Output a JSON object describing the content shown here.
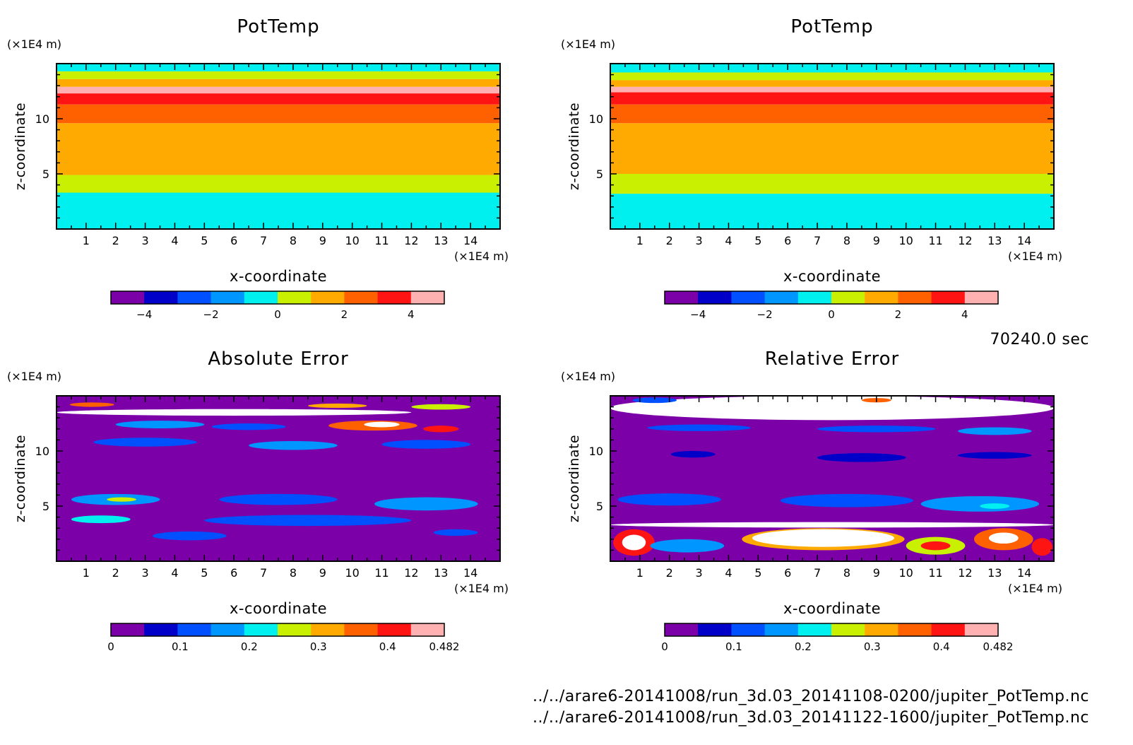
{
  "timestamp": "70240.0 sec",
  "files": [
    "../../arare6-20141008/run_3d.03_20141108-0200/jupiter_PotTemp.nc",
    "../../arare6-20141008/run_3d.03_20141122-1600/jupiter_PotTemp.nc"
  ],
  "chart_data": [
    {
      "type": "heatmap",
      "title": "PotTemp",
      "xlabel": "x-coordinate",
      "ylabel": "z-coordinate",
      "x_unit": "(×1E4 m)",
      "y_unit": "(×1E4 m)",
      "xlim": [
        0,
        15
      ],
      "ylim": [
        0,
        15
      ],
      "x_ticks": [
        "1",
        "2",
        "3",
        "4",
        "5",
        "6",
        "7",
        "8",
        "9",
        "10",
        "11",
        "12",
        "13",
        "14"
      ],
      "y_ticks": [
        "5",
        "10"
      ],
      "colorbar": {
        "levels": [
          -5,
          -4,
          -3,
          -2,
          -1,
          0,
          1,
          2,
          3,
          4,
          5
        ],
        "tick_labels": [
          "−4",
          "−2",
          "0",
          "2",
          "4"
        ],
        "colors": [
          "#7c00a8",
          "#0000c8",
          "#0050ff",
          "#0096ff",
          "#00f0f0",
          "#c8f000",
          "#ffaa00",
          "#ff6000",
          "#ff1414",
          "#ffb0b0"
        ]
      },
      "layers": [
        {
          "z_from": 0,
          "z_to": 3.3,
          "color": "#00f0f0"
        },
        {
          "z_from": 3.3,
          "z_to": 4.9,
          "color": "#c8f000"
        },
        {
          "z_from": 4.9,
          "z_to": 9.6,
          "color": "#ffaa00"
        },
        {
          "z_from": 9.6,
          "z_to": 11.3,
          "color": "#ff6000"
        },
        {
          "z_from": 11.3,
          "z_to": 12.3,
          "color": "#ff1414"
        },
        {
          "z_from": 12.3,
          "z_to": 12.9,
          "color": "#ffb0b0"
        },
        {
          "z_from": 12.9,
          "z_to": 13.6,
          "color": "#ffaa00"
        },
        {
          "z_from": 13.6,
          "z_to": 14.3,
          "color": "#c8f000"
        },
        {
          "z_from": 14.3,
          "z_to": 15,
          "color": "#00f0f0"
        }
      ]
    },
    {
      "type": "heatmap",
      "title": "PotTemp",
      "xlabel": "x-coordinate",
      "ylabel": "z-coordinate",
      "x_unit": "(×1E4 m)",
      "y_unit": "(×1E4 m)",
      "xlim": [
        0,
        15
      ],
      "ylim": [
        0,
        15
      ],
      "x_ticks": [
        "1",
        "2",
        "3",
        "4",
        "5",
        "6",
        "7",
        "8",
        "9",
        "10",
        "11",
        "12",
        "13",
        "14"
      ],
      "y_ticks": [
        "5",
        "10"
      ],
      "colorbar": {
        "levels": [
          -5,
          -4,
          -3,
          -2,
          -1,
          0,
          1,
          2,
          3,
          4,
          5
        ],
        "tick_labels": [
          "−4",
          "−2",
          "0",
          "2",
          "4"
        ],
        "colors": [
          "#7c00a8",
          "#0000c8",
          "#0050ff",
          "#0096ff",
          "#00f0f0",
          "#c8f000",
          "#ffaa00",
          "#ff6000",
          "#ff1414",
          "#ffb0b0"
        ]
      },
      "layers": [
        {
          "z_from": 0,
          "z_to": 3.2,
          "color": "#00f0f0"
        },
        {
          "z_from": 3.2,
          "z_to": 5.0,
          "color": "#c8f000"
        },
        {
          "z_from": 5.0,
          "z_to": 9.6,
          "color": "#ffaa00"
        },
        {
          "z_from": 9.6,
          "z_to": 11.3,
          "color": "#ff6000"
        },
        {
          "z_from": 11.3,
          "z_to": 12.4,
          "color": "#ff1414"
        },
        {
          "z_from": 12.4,
          "z_to": 12.9,
          "color": "#ffb0b0"
        },
        {
          "z_from": 12.9,
          "z_to": 13.5,
          "color": "#ffaa00"
        },
        {
          "z_from": 13.5,
          "z_to": 14.2,
          "color": "#c8f000"
        },
        {
          "z_from": 14.2,
          "z_to": 15,
          "color": "#00f0f0"
        }
      ]
    },
    {
      "type": "heatmap",
      "title": "Absolute Error",
      "xlabel": "x-coordinate",
      "ylabel": "z-coordinate",
      "x_unit": "(×1E4 m)",
      "y_unit": "(×1E4 m)",
      "xlim": [
        0,
        15
      ],
      "ylim": [
        0,
        15
      ],
      "x_ticks": [
        "1",
        "2",
        "3",
        "4",
        "5",
        "6",
        "7",
        "8",
        "9",
        "10",
        "11",
        "12",
        "13",
        "14"
      ],
      "y_ticks": [
        "5",
        "10"
      ],
      "colorbar": {
        "levels": [
          0,
          0.0482,
          0.0964,
          0.1446,
          0.1928,
          0.241,
          0.2892,
          0.3374,
          0.3856,
          0.4338,
          0.482
        ],
        "tick_labels": [
          "0",
          "0.1",
          "0.2",
          "0.3",
          "0.4",
          "0.482"
        ],
        "colors": [
          "#7c00a8",
          "#0000c8",
          "#0050ff",
          "#0096ff",
          "#00f0f0",
          "#c8f000",
          "#ffaa00",
          "#ff6000",
          "#ff1414",
          "#ffb0b0"
        ]
      },
      "background": "#7c00a8",
      "blobs": [
        {
          "x": 6.0,
          "z": 13.5,
          "w": 12,
          "h": 0.6,
          "color": "#ffffff"
        },
        {
          "x": 1.2,
          "z": 14.2,
          "w": 1.5,
          "h": 0.4,
          "color": "#ff6000"
        },
        {
          "x": 9.5,
          "z": 14.1,
          "w": 2.0,
          "h": 0.4,
          "color": "#ffaa00"
        },
        {
          "x": 13.0,
          "z": 14.0,
          "w": 2.0,
          "h": 0.5,
          "color": "#c8f000"
        },
        {
          "x": 3.5,
          "z": 12.4,
          "w": 3.0,
          "h": 0.7,
          "color": "#0096ff"
        },
        {
          "x": 6.5,
          "z": 12.2,
          "w": 2.5,
          "h": 0.6,
          "color": "#0050ff"
        },
        {
          "x": 10.7,
          "z": 12.3,
          "w": 3.0,
          "h": 0.9,
          "color": "#ff6000"
        },
        {
          "x": 11.0,
          "z": 12.4,
          "w": 1.2,
          "h": 0.5,
          "color": "#ffffff"
        },
        {
          "x": 13.0,
          "z": 12.0,
          "w": 1.2,
          "h": 0.6,
          "color": "#ff1414"
        },
        {
          "x": 3.0,
          "z": 10.8,
          "w": 3.5,
          "h": 0.8,
          "color": "#0050ff"
        },
        {
          "x": 8.0,
          "z": 10.5,
          "w": 3.0,
          "h": 0.8,
          "color": "#0096ff"
        },
        {
          "x": 12.5,
          "z": 10.6,
          "w": 3.0,
          "h": 0.8,
          "color": "#0050ff"
        },
        {
          "x": 2.0,
          "z": 5.6,
          "w": 3.0,
          "h": 1.0,
          "color": "#0096ff"
        },
        {
          "x": 2.2,
          "z": 5.6,
          "w": 1.0,
          "h": 0.4,
          "color": "#c8f000"
        },
        {
          "x": 7.5,
          "z": 5.6,
          "w": 4.0,
          "h": 1.0,
          "color": "#0050ff"
        },
        {
          "x": 12.5,
          "z": 5.2,
          "w": 3.5,
          "h": 1.2,
          "color": "#0096ff"
        },
        {
          "x": 1.5,
          "z": 3.8,
          "w": 2.0,
          "h": 0.7,
          "color": "#00f0f0"
        },
        {
          "x": 8.5,
          "z": 3.7,
          "w": 7.0,
          "h": 1.0,
          "color": "#0050ff"
        },
        {
          "x": 4.5,
          "z": 2.3,
          "w": 2.5,
          "h": 0.8,
          "color": "#0050ff"
        },
        {
          "x": 13.5,
          "z": 2.6,
          "w": 1.5,
          "h": 0.6,
          "color": "#0050ff"
        }
      ]
    },
    {
      "type": "heatmap",
      "title": "Relative Error",
      "xlabel": "x-coordinate",
      "ylabel": "z-coordinate",
      "x_unit": "(×1E4 m)",
      "y_unit": "(×1E4 m)",
      "xlim": [
        0,
        15
      ],
      "ylim": [
        0,
        15
      ],
      "x_ticks": [
        "1",
        "2",
        "3",
        "4",
        "5",
        "6",
        "7",
        "8",
        "9",
        "10",
        "11",
        "12",
        "13",
        "14"
      ],
      "y_ticks": [
        "5",
        "10"
      ],
      "colorbar": {
        "levels": [
          0,
          0.0482,
          0.0964,
          0.1446,
          0.1928,
          0.241,
          0.2892,
          0.3374,
          0.3856,
          0.4338,
          0.482
        ],
        "tick_labels": [
          "0",
          "0.1",
          "0.2",
          "0.3",
          "0.4",
          "0.482"
        ],
        "colors": [
          "#7c00a8",
          "#0000c8",
          "#0050ff",
          "#0096ff",
          "#00f0f0",
          "#c8f000",
          "#ffaa00",
          "#ff6000",
          "#ff1414",
          "#ffb0b0"
        ]
      },
      "background": "#7c00a8",
      "blobs": [
        {
          "x": 7.5,
          "z": 13.9,
          "w": 15,
          "h": 2.2,
          "color": "#ffffff"
        },
        {
          "x": 1.5,
          "z": 14.6,
          "w": 1.5,
          "h": 0.5,
          "color": "#0050ff"
        },
        {
          "x": 9.0,
          "z": 14.6,
          "w": 1.0,
          "h": 0.4,
          "color": "#ff6000"
        },
        {
          "x": 3.0,
          "z": 12.1,
          "w": 3.5,
          "h": 0.6,
          "color": "#0050ff"
        },
        {
          "x": 9.0,
          "z": 12.0,
          "w": 4.0,
          "h": 0.6,
          "color": "#0050ff"
        },
        {
          "x": 13.0,
          "z": 11.8,
          "w": 2.5,
          "h": 0.7,
          "color": "#0096ff"
        },
        {
          "x": 2.8,
          "z": 9.7,
          "w": 1.5,
          "h": 0.6,
          "color": "#0000c8"
        },
        {
          "x": 8.5,
          "z": 9.4,
          "w": 3.0,
          "h": 0.8,
          "color": "#0000c8"
        },
        {
          "x": 13.0,
          "z": 9.6,
          "w": 2.5,
          "h": 0.6,
          "color": "#0000c8"
        },
        {
          "x": 2.0,
          "z": 5.6,
          "w": 3.5,
          "h": 1.1,
          "color": "#0050ff"
        },
        {
          "x": 8.0,
          "z": 5.5,
          "w": 4.5,
          "h": 1.2,
          "color": "#0050ff"
        },
        {
          "x": 12.5,
          "z": 5.2,
          "w": 4.0,
          "h": 1.4,
          "color": "#0096ff"
        },
        {
          "x": 13.0,
          "z": 5.0,
          "w": 1.0,
          "h": 0.5,
          "color": "#00f0f0"
        },
        {
          "x": 7.5,
          "z": 3.3,
          "w": 15,
          "h": 0.5,
          "color": "#ffffff"
        },
        {
          "x": 0.8,
          "z": 1.7,
          "w": 1.4,
          "h": 2.4,
          "color": "#ff1414"
        },
        {
          "x": 0.8,
          "z": 1.7,
          "w": 0.8,
          "h": 1.4,
          "color": "#ffffff"
        },
        {
          "x": 2.6,
          "z": 1.4,
          "w": 2.5,
          "h": 1.2,
          "color": "#0096ff"
        },
        {
          "x": 7.2,
          "z": 2.0,
          "w": 5.5,
          "h": 2.0,
          "color": "#ffaa00"
        },
        {
          "x": 7.2,
          "z": 2.1,
          "w": 4.8,
          "h": 1.6,
          "color": "#ffffff"
        },
        {
          "x": 11.0,
          "z": 1.4,
          "w": 2.0,
          "h": 1.6,
          "color": "#c8f000"
        },
        {
          "x": 11.0,
          "z": 1.4,
          "w": 1.0,
          "h": 0.8,
          "color": "#ff1414"
        },
        {
          "x": 13.3,
          "z": 2.0,
          "w": 2.0,
          "h": 2.0,
          "color": "#ff6000"
        },
        {
          "x": 13.3,
          "z": 2.1,
          "w": 1.0,
          "h": 1.0,
          "color": "#ffffff"
        },
        {
          "x": 14.6,
          "z": 1.3,
          "w": 0.7,
          "h": 1.6,
          "color": "#ff1414"
        }
      ]
    }
  ]
}
